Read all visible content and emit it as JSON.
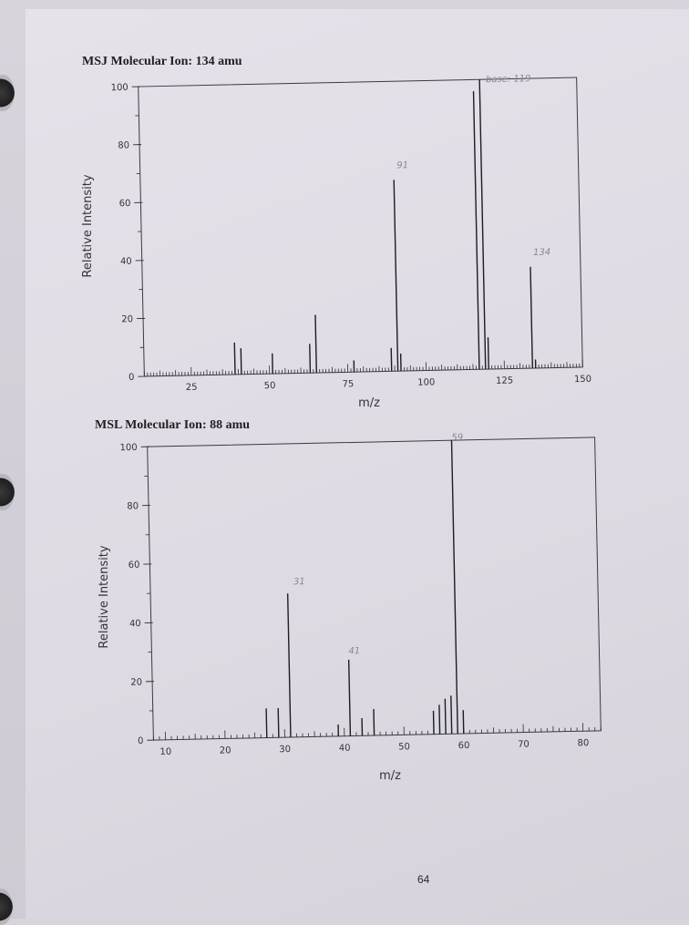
{
  "page_number": "64",
  "chart_data": [
    {
      "type": "bar",
      "title": "MSJ Molecular Ion: 134 amu",
      "xlabel": "m/z",
      "ylabel": "Relative Intensity",
      "xlim": [
        10,
        150
      ],
      "ylim": [
        0,
        100
      ],
      "xticks": [
        25,
        50,
        75,
        100,
        125,
        150
      ],
      "yticks": [
        0,
        20,
        40,
        60,
        80,
        100
      ],
      "annotations": [
        {
          "text": "base: 119",
          "x": 121,
          "y": 99
        },
        {
          "text": "91",
          "x": 92,
          "y": 70
        },
        {
          "text": "134",
          "x": 135,
          "y": 39
        }
      ],
      "peaks": {
        "x": [
          39,
          41,
          51,
          63,
          65,
          77,
          89,
          91,
          92,
          117,
          119,
          120,
          134,
          135
        ],
        "values": [
          11,
          9,
          7,
          10,
          20,
          4,
          8,
          66,
          6,
          96,
          100,
          11,
          35,
          3
        ]
      }
    },
    {
      "type": "bar",
      "title": "MSL Molecular Ion: 88 amu",
      "xlabel": "m/z",
      "ylabel": "Relative Intensity",
      "xlim": [
        8,
        83
      ],
      "ylim": [
        0,
        100
      ],
      "xticks": [
        10,
        20,
        30,
        40,
        50,
        60,
        70,
        80
      ],
      "yticks": [
        0,
        20,
        40,
        60,
        80,
        100
      ],
      "annotations": [
        {
          "text": "31",
          "x": 32,
          "y": 52
        },
        {
          "text": "41",
          "x": 41,
          "y": 28
        },
        {
          "text": "59",
          "x": 59,
          "y": 100
        }
      ],
      "peaks": {
        "x": [
          27,
          29,
          31,
          39,
          41,
          43,
          45,
          55,
          56,
          57,
          58,
          59,
          60
        ],
        "values": [
          10,
          10,
          49,
          4,
          26,
          6,
          9,
          8,
          10,
          12,
          13,
          100,
          8
        ]
      }
    }
  ]
}
